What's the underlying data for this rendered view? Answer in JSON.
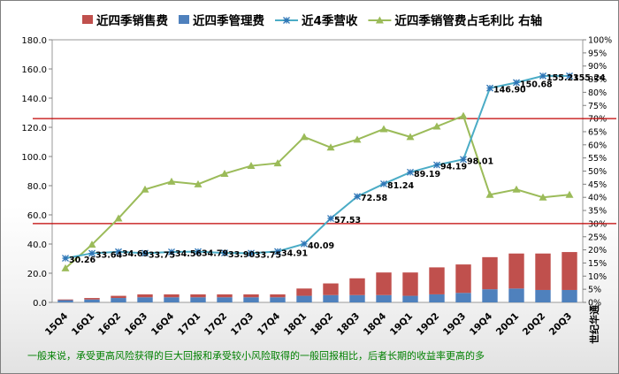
{
  "chart_data": {
    "type": "bar",
    "title": "",
    "categories": [
      "15Q4",
      "16Q1",
      "16Q2",
      "16Q3",
      "16Q4",
      "17Q1",
      "17Q2",
      "17Q3",
      "17Q4",
      "18Q1",
      "18Q2",
      "18Q3",
      "18Q4",
      "19Q1",
      "19Q2",
      "19Q3",
      "19Q4",
      "20Q1",
      "20Q2",
      "20Q3"
    ],
    "series": [
      {
        "name": "近四季销售费",
        "type": "stacked-bar",
        "axis": "left",
        "color": "#c0504d",
        "values": [
          0.5,
          1.0,
          1.5,
          2.0,
          2.0,
          2.0,
          2.0,
          2.0,
          2.0,
          5.0,
          8.0,
          11.5,
          15.5,
          16.0,
          18.5,
          19.5,
          22.0,
          24.0,
          25.0,
          26.0
        ]
      },
      {
        "name": "近四季管理费",
        "type": "stacked-bar",
        "axis": "left",
        "color": "#4f81bd",
        "values": [
          1.5,
          2.0,
          3.0,
          3.5,
          3.5,
          3.5,
          3.5,
          3.5,
          3.5,
          4.5,
          5.0,
          5.0,
          5.0,
          4.5,
          5.5,
          6.5,
          9.0,
          9.5,
          8.5,
          8.5
        ]
      },
      {
        "name": "近4季营收",
        "type": "line",
        "axis": "left",
        "color": "#4bacc6",
        "marker": "star",
        "values": [
          30.26,
          33.64,
          34.69,
          33.75,
          34.56,
          34.79,
          33.9,
          33.75,
          34.91,
          40.09,
          57.53,
          72.58,
          81.24,
          89.19,
          94.19,
          98.01,
          146.9,
          150.68,
          155.23,
          155.24
        ],
        "labels": [
          "30.26",
          "33.64",
          "34.69",
          "33.75",
          "34.56",
          "34.79",
          "33.90",
          "33.75",
          "34.91",
          "40.09",
          "57.53",
          "72.58",
          "81.24",
          "89.19",
          "94.19",
          "98.01",
          "146.90",
          "150.68",
          "155.23",
          "155.24"
        ]
      },
      {
        "name": "近四季销管费占毛利比 右轴",
        "type": "line",
        "axis": "right",
        "color": "#9bbb59",
        "marker": "triangle",
        "values": [
          13,
          22,
          32,
          43,
          46,
          45,
          49,
          52,
          53,
          63,
          59,
          62,
          66,
          63,
          67,
          71,
          41,
          43,
          40,
          41
        ]
      }
    ],
    "reference_lines": [
      {
        "axis": "left",
        "value": 126,
        "color": "#c00000"
      },
      {
        "axis": "left",
        "value": 54,
        "color": "#c00000"
      }
    ],
    "ylim": [
      0,
      180
    ],
    "yticks": [
      "0.0",
      "20.0",
      "40.0",
      "60.0",
      "80.0",
      "100.0",
      "120.0",
      "140.0",
      "160.0",
      "180.0"
    ],
    "y2lim": [
      0,
      100
    ],
    "y2ticks": [
      "0%",
      "5%",
      "10%",
      "15%",
      "20%",
      "25%",
      "30%",
      "35%",
      "40%",
      "45%",
      "50%",
      "55%",
      "60%",
      "65%",
      "70%",
      "75%",
      "80%",
      "85%",
      "90%",
      "95%",
      "100%"
    ],
    "watermark": "世纪华通",
    "legend_position": "top",
    "grid": false
  },
  "footnote": "一般来说，承受更高风险获得的巨大回报和承受较小风险取得的一般回报相比，后者长期的收益率更高的多"
}
